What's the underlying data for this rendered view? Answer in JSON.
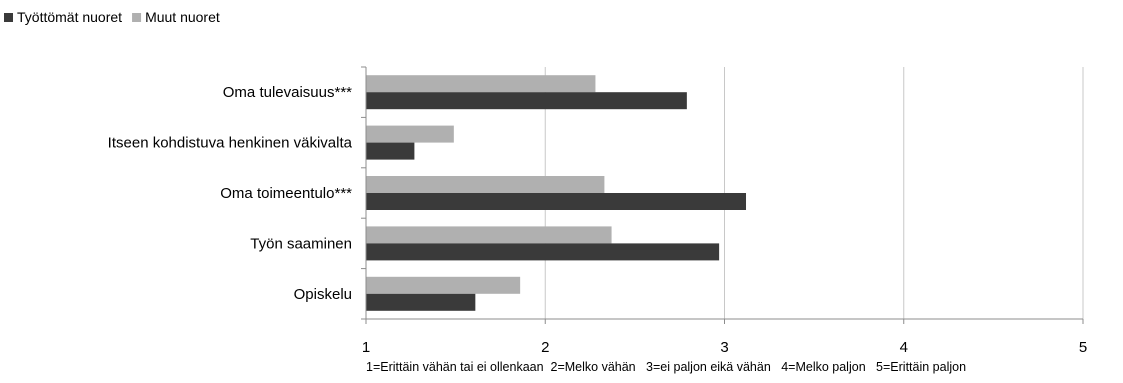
{
  "chart_data": {
    "type": "bar",
    "orientation": "horizontal",
    "categories": [
      "Oma tulevaisuus***",
      "Itseen kohdistuva henkinen väkivalta",
      "Oma toimeentulo***",
      "Työn saaminen",
      "Opiskelu"
    ],
    "series": [
      {
        "name": "Työttömät nuoret",
        "color": "#3a3a3a",
        "values": [
          2.79,
          1.27,
          3.12,
          2.97,
          1.61
        ]
      },
      {
        "name": "Muut nuoret",
        "color": "#b0b0b0",
        "values": [
          2.28,
          1.49,
          2.33,
          2.37,
          1.86
        ]
      }
    ],
    "xlim": [
      1,
      5
    ],
    "xticks": [
      1,
      2,
      3,
      4,
      5
    ],
    "xlabel": "1=Erittäin vähän tai ei ollenkaan  2=Melko vähän   3=ei paljon eikä vähän   4=Melko paljon   5=Erittäin paljon",
    "grid": true,
    "legend_position": "top-left"
  }
}
